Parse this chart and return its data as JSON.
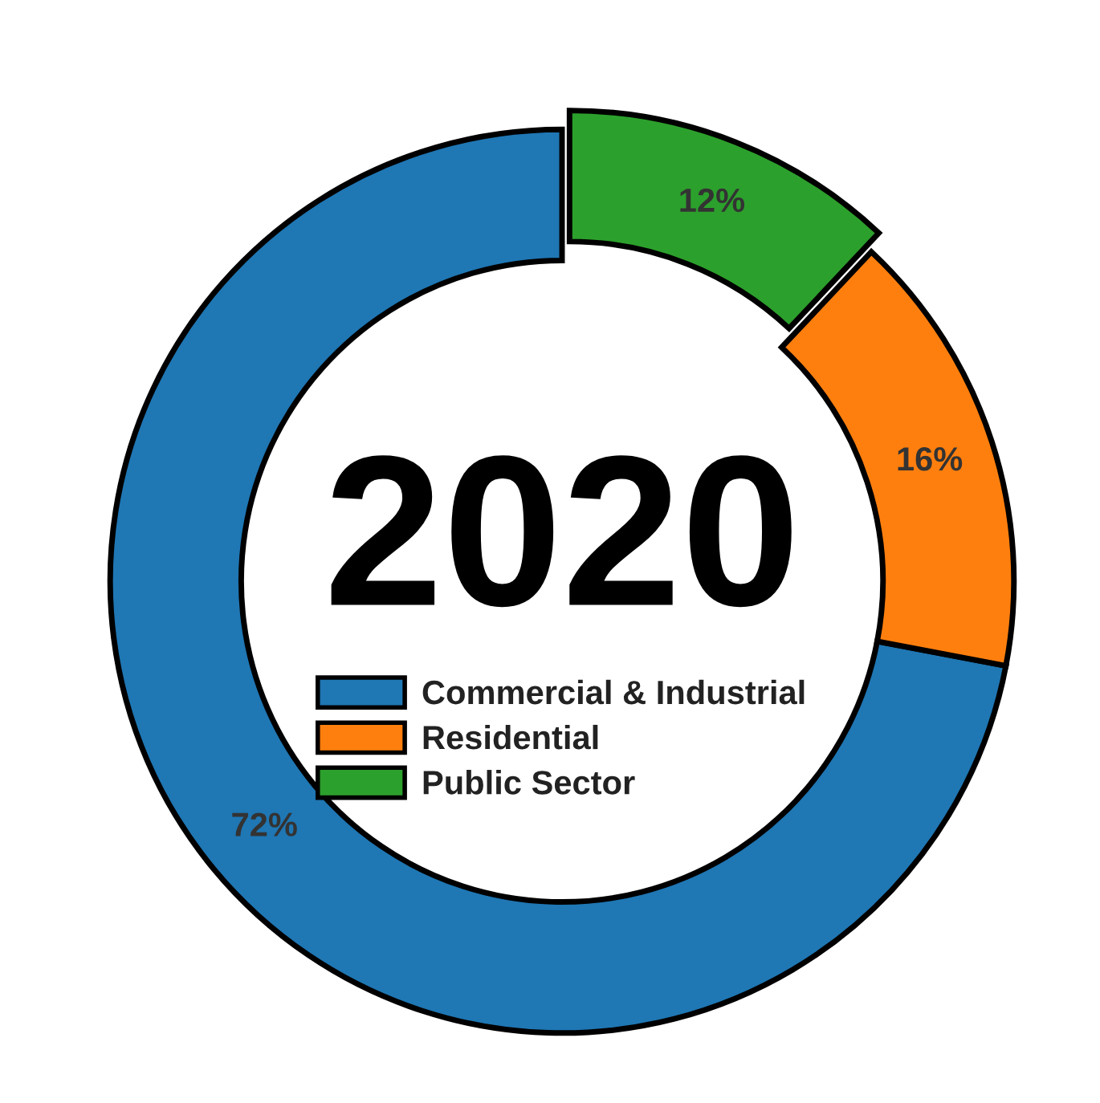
{
  "chart_data": {
    "type": "donut",
    "title": "2020",
    "categories": [
      "Commercial & Industrial",
      "Residential",
      "Public Sector"
    ],
    "values": [
      72,
      16,
      12
    ],
    "colors": [
      "#1f77b4",
      "#ff7f0e",
      "#2ca02c"
    ],
    "value_labels": [
      "72%",
      "16%",
      "12%"
    ],
    "legend": "center"
  }
}
